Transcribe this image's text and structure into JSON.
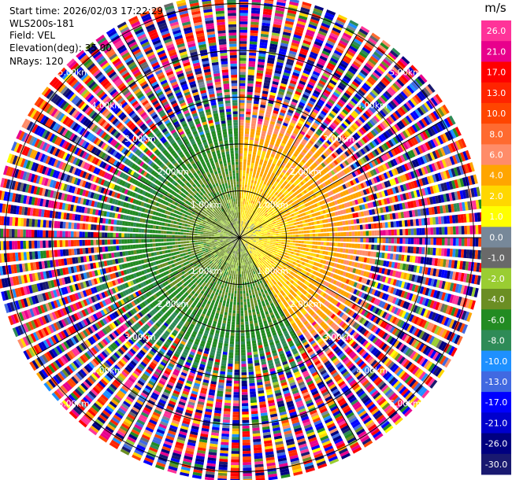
{
  "info": {
    "start_time": "Start time: 2026/02/03 17:22:29",
    "instrument": "WLS200s-181",
    "field": "Field: VEL",
    "elevation": "Elevation(deg): 35.00",
    "nrays": "NRays: 120"
  },
  "chart_data": {
    "type": "heatmap",
    "projection": "polar-ppi",
    "field": "VEL",
    "units": "m/s",
    "nrays": 120,
    "max_range_km": 5.2,
    "range_ring_labels": [
      "1.00km",
      "2.00km",
      "3.00km",
      "4.00km",
      "5.00km"
    ],
    "range_rings_km": [
      1,
      2,
      3,
      4,
      5
    ],
    "colorbar": {
      "title": "m/s",
      "tick_labels": [
        "26.0",
        "21.0",
        "17.0",
        "13.0",
        "10.0",
        "8.0",
        "6.0",
        "4.0",
        "2.0",
        "1.0",
        "0.0",
        "-1.0",
        "-2.0",
        "-4.0",
        "-6.0",
        "-8.0",
        "-10.0",
        "-13.0",
        "-17.0",
        "-21.0",
        "-26.0",
        "-30.0"
      ],
      "colors": [
        "#ff3399",
        "#e8008c",
        "#ff0000",
        "#ff2400",
        "#ff4500",
        "#ff6a30",
        "#ff8c69",
        "#ffa500",
        "#ffd700",
        "#ffff00",
        "#778899",
        "#696969",
        "#9acd32",
        "#6b8e23",
        "#228b22",
        "#2e8b57",
        "#1e90ff",
        "#4169e1",
        "#0000ff",
        "#0000cd",
        "#000080",
        "#191970"
      ]
    },
    "velocity_pattern": {
      "toward_sector_deg": [
        150,
        360
      ],
      "away_sector_deg": [
        0,
        150
      ],
      "clean_radius_km": 2.3,
      "near_speed_ms": 4,
      "far_noise_range_ms": [
        -30,
        30
      ]
    }
  }
}
